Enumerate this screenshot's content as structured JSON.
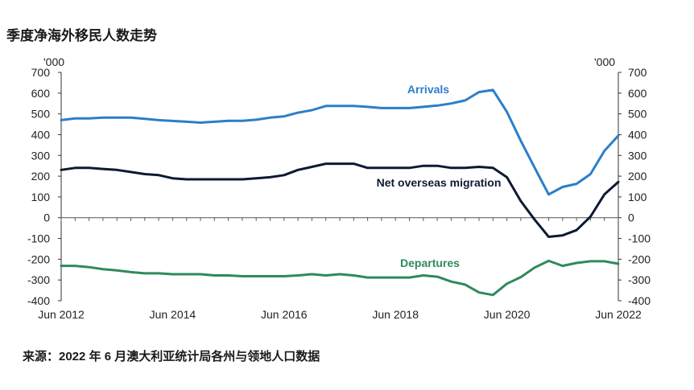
{
  "title": "季度净海外移民人数走势",
  "source": "来源：2022 年 6 月澳大利亚统计局各州与领地人口数据",
  "chart_data": {
    "type": "line",
    "y_unit_left": "'000",
    "y_unit_right": "'000",
    "ylim": [
      -400,
      700
    ],
    "yticks": [
      700,
      600,
      500,
      400,
      300,
      200,
      100,
      0,
      -100,
      -200,
      -300,
      -400
    ],
    "xticks": [
      "Jun 2012",
      "Jun 2014",
      "Jun 2016",
      "Jun 2018",
      "Jun 2020",
      "Jun 2022"
    ],
    "xlim": [
      2012.5,
      2022.5
    ],
    "grid": false,
    "series": [
      {
        "name": "Arrivals",
        "color": "#2a7fc9",
        "points": [
          [
            2012.5,
            470
          ],
          [
            2012.75,
            478
          ],
          [
            2013.0,
            478
          ],
          [
            2013.25,
            482
          ],
          [
            2013.5,
            482
          ],
          [
            2013.75,
            482
          ],
          [
            2014.0,
            476
          ],
          [
            2014.25,
            470
          ],
          [
            2014.5,
            466
          ],
          [
            2014.75,
            462
          ],
          [
            2015.0,
            458
          ],
          [
            2015.25,
            462
          ],
          [
            2015.5,
            467
          ],
          [
            2015.75,
            467
          ],
          [
            2016.0,
            472
          ],
          [
            2016.25,
            482
          ],
          [
            2016.5,
            488
          ],
          [
            2016.75,
            506
          ],
          [
            2017.0,
            518
          ],
          [
            2017.25,
            538
          ],
          [
            2017.5,
            538
          ],
          [
            2017.75,
            538
          ],
          [
            2018.0,
            534
          ],
          [
            2018.25,
            528
          ],
          [
            2018.5,
            528
          ],
          [
            2018.75,
            528
          ],
          [
            2019.0,
            534
          ],
          [
            2019.25,
            540
          ],
          [
            2019.5,
            550
          ],
          [
            2019.75,
            565
          ],
          [
            2020.0,
            605
          ],
          [
            2020.25,
            615
          ],
          [
            2020.5,
            510
          ],
          [
            2020.75,
            370
          ],
          [
            2021.0,
            240
          ],
          [
            2021.25,
            112
          ],
          [
            2021.5,
            148
          ],
          [
            2021.75,
            163
          ],
          [
            2022.0,
            210
          ],
          [
            2022.25,
            322
          ],
          [
            2022.5,
            395
          ]
        ]
      },
      {
        "name": "Net overseas migration",
        "color": "#0d1a33",
        "points": [
          [
            2012.5,
            230
          ],
          [
            2012.75,
            240
          ],
          [
            2013.0,
            240
          ],
          [
            2013.25,
            235
          ],
          [
            2013.5,
            230
          ],
          [
            2013.75,
            220
          ],
          [
            2014.0,
            210
          ],
          [
            2014.25,
            205
          ],
          [
            2014.5,
            190
          ],
          [
            2014.75,
            185
          ],
          [
            2015.0,
            185
          ],
          [
            2015.25,
            185
          ],
          [
            2015.5,
            185
          ],
          [
            2015.75,
            185
          ],
          [
            2016.0,
            190
          ],
          [
            2016.25,
            195
          ],
          [
            2016.5,
            205
          ],
          [
            2016.75,
            230
          ],
          [
            2017.0,
            245
          ],
          [
            2017.25,
            260
          ],
          [
            2017.5,
            260
          ],
          [
            2017.75,
            260
          ],
          [
            2018.0,
            240
          ],
          [
            2018.25,
            240
          ],
          [
            2018.5,
            240
          ],
          [
            2018.75,
            240
          ],
          [
            2019.0,
            250
          ],
          [
            2019.25,
            250
          ],
          [
            2019.5,
            240
          ],
          [
            2019.75,
            240
          ],
          [
            2020.0,
            245
          ],
          [
            2020.25,
            240
          ],
          [
            2020.5,
            195
          ],
          [
            2020.75,
            80
          ],
          [
            2021.0,
            -10
          ],
          [
            2021.25,
            -92
          ],
          [
            2021.5,
            -85
          ],
          [
            2021.75,
            -60
          ],
          [
            2022.0,
            5
          ],
          [
            2022.25,
            112
          ],
          [
            2022.5,
            172
          ]
        ]
      },
      {
        "name": "Departures",
        "color": "#2e8a5c",
        "points": [
          [
            2012.5,
            -232
          ],
          [
            2012.75,
            -232
          ],
          [
            2013.0,
            -238
          ],
          [
            2013.25,
            -248
          ],
          [
            2013.5,
            -254
          ],
          [
            2013.75,
            -262
          ],
          [
            2014.0,
            -268
          ],
          [
            2014.25,
            -268
          ],
          [
            2014.5,
            -272
          ],
          [
            2014.75,
            -272
          ],
          [
            2015.0,
            -272
          ],
          [
            2015.25,
            -278
          ],
          [
            2015.5,
            -278
          ],
          [
            2015.75,
            -282
          ],
          [
            2016.0,
            -282
          ],
          [
            2016.25,
            -282
          ],
          [
            2016.5,
            -282
          ],
          [
            2016.75,
            -278
          ],
          [
            2017.0,
            -272
          ],
          [
            2017.25,
            -278
          ],
          [
            2017.5,
            -272
          ],
          [
            2017.75,
            -278
          ],
          [
            2018.0,
            -288
          ],
          [
            2018.25,
            -288
          ],
          [
            2018.5,
            -288
          ],
          [
            2018.75,
            -288
          ],
          [
            2019.0,
            -278
          ],
          [
            2019.25,
            -284
          ],
          [
            2019.5,
            -308
          ],
          [
            2019.75,
            -322
          ],
          [
            2020.0,
            -360
          ],
          [
            2020.25,
            -372
          ],
          [
            2020.5,
            -318
          ],
          [
            2020.75,
            -286
          ],
          [
            2021.0,
            -240
          ],
          [
            2021.25,
            -208
          ],
          [
            2021.5,
            -232
          ],
          [
            2021.75,
            -218
          ],
          [
            2022.0,
            -210
          ],
          [
            2022.25,
            -210
          ],
          [
            2022.5,
            -222
          ]
        ]
      }
    ]
  }
}
